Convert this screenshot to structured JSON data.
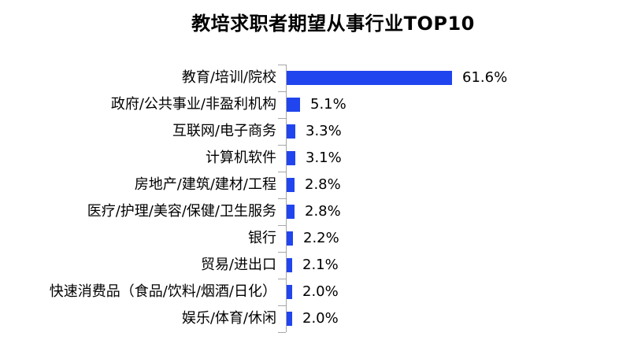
{
  "title": "教培求职者期望从事行业TOP10",
  "colors": {
    "bar": "#2045EE",
    "axis": "#A6A6A6",
    "text": "#000000"
  },
  "chart_data": {
    "type": "bar",
    "orientation": "horizontal",
    "title": "教培求职者期望从事行业TOP10",
    "categories": [
      "教育/培训/院校",
      "政府/公共事业/非盈利机构",
      "互联网/电子商务",
      "计算机软件",
      "房地产/建筑/建材/工程",
      "医疗/护理/美容/保健/卫生服务",
      "银行",
      "贸易/进出口",
      "快速消费品（食品/饮料/烟酒/日化）",
      "娱乐/体育/休闲"
    ],
    "values": [
      61.6,
      5.1,
      3.3,
      3.1,
      2.8,
      2.8,
      2.2,
      2.1,
      2.0,
      2.0
    ],
    "value_labels": [
      "61.6%",
      "5.1%",
      "3.3%",
      "3.1%",
      "2.8%",
      "2.8%",
      "2.2%",
      "2.1%",
      "2.0%",
      "2.0%"
    ],
    "xlabel": "",
    "ylabel": "",
    "xlim": [
      0,
      65
    ],
    "grid": false,
    "legend": false,
    "data_labels": "outside-end"
  }
}
